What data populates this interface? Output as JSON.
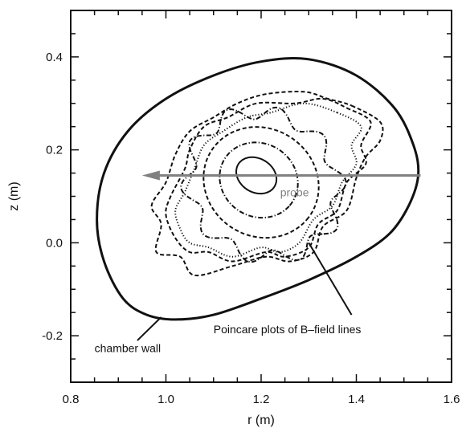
{
  "chart_data": {
    "type": "line",
    "title": "",
    "xlabel": "r (m)",
    "ylabel": "z (m)",
    "xlim": [
      0.8,
      1.6
    ],
    "ylim": [
      -0.3,
      0.5
    ],
    "x_ticks": [
      "0.8",
      "1.0",
      "1.2",
      "1.4",
      "1.6"
    ],
    "y_ticks": [
      "-0.2",
      "0.0",
      "0.2",
      "0.4"
    ],
    "grid": false,
    "colors": {
      "curves": "#111111",
      "probe": "#808080"
    },
    "series": [
      {
        "name": "chamber wall",
        "style": "solid",
        "closed": true,
        "points": [
          [
            1.53,
            0.145
          ],
          [
            1.52,
            0.21
          ],
          [
            1.48,
            0.29
          ],
          [
            1.4,
            0.36
          ],
          [
            1.3,
            0.395
          ],
          [
            1.2,
            0.39
          ],
          [
            1.1,
            0.36
          ],
          [
            1.0,
            0.31
          ],
          [
            0.92,
            0.24
          ],
          [
            0.87,
            0.15
          ],
          [
            0.855,
            0.05
          ],
          [
            0.87,
            -0.04
          ],
          [
            0.91,
            -0.12
          ],
          [
            0.96,
            -0.155
          ],
          [
            1.02,
            -0.165
          ],
          [
            1.1,
            -0.155
          ],
          [
            1.2,
            -0.12
          ],
          [
            1.3,
            -0.08
          ],
          [
            1.4,
            -0.03
          ],
          [
            1.47,
            0.02
          ],
          [
            1.51,
            0.08
          ]
        ]
      },
      {
        "name": "",
        "style": "solid",
        "closed": true,
        "center": [
          1.19,
          0.145
        ],
        "radii": [
          0.045,
          0.036
        ],
        "tilt_deg": -35
      },
      {
        "name": "",
        "style": "dash-dot",
        "closed": true,
        "center": [
          1.195,
          0.135
        ],
        "radii": [
          0.085,
          0.078
        ],
        "tilt_deg": -40
      },
      {
        "name": "",
        "style": "dashed",
        "closed": true,
        "center": [
          1.2,
          0.13
        ],
        "radii": [
          0.125,
          0.115
        ],
        "tilt_deg": -40
      },
      {
        "name": "",
        "style": "dash-dot",
        "closed": true,
        "center": [
          1.205,
          0.125
        ],
        "radii": [
          0.165,
          0.15
        ],
        "tilt_deg": -40,
        "ripple_amp": 0.1,
        "ripple_n": 10
      },
      {
        "name": "",
        "style": "dashed",
        "closed": true,
        "points": [
          [
            1.38,
            0.29
          ],
          [
            1.43,
            0.26
          ],
          [
            1.41,
            0.21
          ],
          [
            1.42,
            0.17
          ],
          [
            1.38,
            0.13
          ],
          [
            1.36,
            0.07
          ],
          [
            1.32,
            0.04
          ],
          [
            1.3,
            -0.01
          ],
          [
            1.25,
            -0.03
          ],
          [
            1.21,
            -0.02
          ],
          [
            1.14,
            -0.04
          ],
          [
            1.09,
            -0.02
          ],
          [
            1.05,
            -0.02
          ],
          [
            1.02,
            0.01
          ],
          [
            1.0,
            0.06
          ],
          [
            1.01,
            0.1
          ],
          [
            1.04,
            0.16
          ],
          [
            1.05,
            0.2
          ],
          [
            1.08,
            0.25
          ],
          [
            1.13,
            0.27
          ],
          [
            1.19,
            0.3
          ],
          [
            1.27,
            0.3
          ],
          [
            1.33,
            0.31
          ]
        ]
      },
      {
        "name": "",
        "style": "dotted",
        "closed": true,
        "points": [
          [
            1.36,
            0.28
          ],
          [
            1.41,
            0.25
          ],
          [
            1.39,
            0.21
          ],
          [
            1.4,
            0.17
          ],
          [
            1.37,
            0.13
          ],
          [
            1.35,
            0.08
          ],
          [
            1.31,
            0.05
          ],
          [
            1.28,
            0.0
          ],
          [
            1.24,
            -0.02
          ],
          [
            1.2,
            -0.01
          ],
          [
            1.14,
            -0.03
          ],
          [
            1.09,
            -0.01
          ],
          [
            1.05,
            0.0
          ],
          [
            1.03,
            0.03
          ],
          [
            1.02,
            0.07
          ],
          [
            1.04,
            0.11
          ],
          [
            1.06,
            0.16
          ],
          [
            1.08,
            0.21
          ],
          [
            1.12,
            0.24
          ],
          [
            1.17,
            0.27
          ],
          [
            1.22,
            0.28
          ],
          [
            1.29,
            0.3
          ]
        ]
      },
      {
        "name": "",
        "style": "dashed",
        "closed": true,
        "points": [
          [
            1.39,
            0.295
          ],
          [
            1.45,
            0.26
          ],
          [
            1.45,
            0.22
          ],
          [
            1.42,
            0.185
          ],
          [
            1.4,
            0.14
          ],
          [
            1.38,
            0.07
          ],
          [
            1.33,
            0.035
          ],
          [
            1.31,
            -0.02
          ],
          [
            1.26,
            -0.04
          ],
          [
            1.21,
            -0.03
          ],
          [
            1.14,
            -0.05
          ],
          [
            1.06,
            -0.07
          ],
          [
            1.03,
            -0.03
          ],
          [
            0.98,
            -0.02
          ],
          [
            0.99,
            0.04
          ],
          [
            0.97,
            0.08
          ],
          [
            1.0,
            0.13
          ],
          [
            1.02,
            0.19
          ],
          [
            1.05,
            0.24
          ],
          [
            1.1,
            0.27
          ],
          [
            1.15,
            0.3
          ],
          [
            1.21,
            0.32
          ],
          [
            1.29,
            0.325
          ],
          [
            1.34,
            0.31
          ]
        ]
      },
      {
        "name": "probe",
        "style": "arrow",
        "points": [
          [
            1.535,
            0.145
          ],
          [
            0.95,
            0.145
          ]
        ]
      }
    ],
    "annotations": [
      {
        "text": "probe",
        "x": 1.24,
        "y": 0.1
      },
      {
        "text": "Poincare plots of B–field lines",
        "x": 1.1,
        "y": -0.195,
        "target": [
          1.3,
          0.0
        ],
        "from": [
          1.39,
          -0.155
        ]
      },
      {
        "text": "chamber wall",
        "x": 0.85,
        "y": -0.235,
        "target": [
          0.99,
          -0.16
        ],
        "from": [
          0.94,
          -0.21
        ]
      }
    ]
  }
}
